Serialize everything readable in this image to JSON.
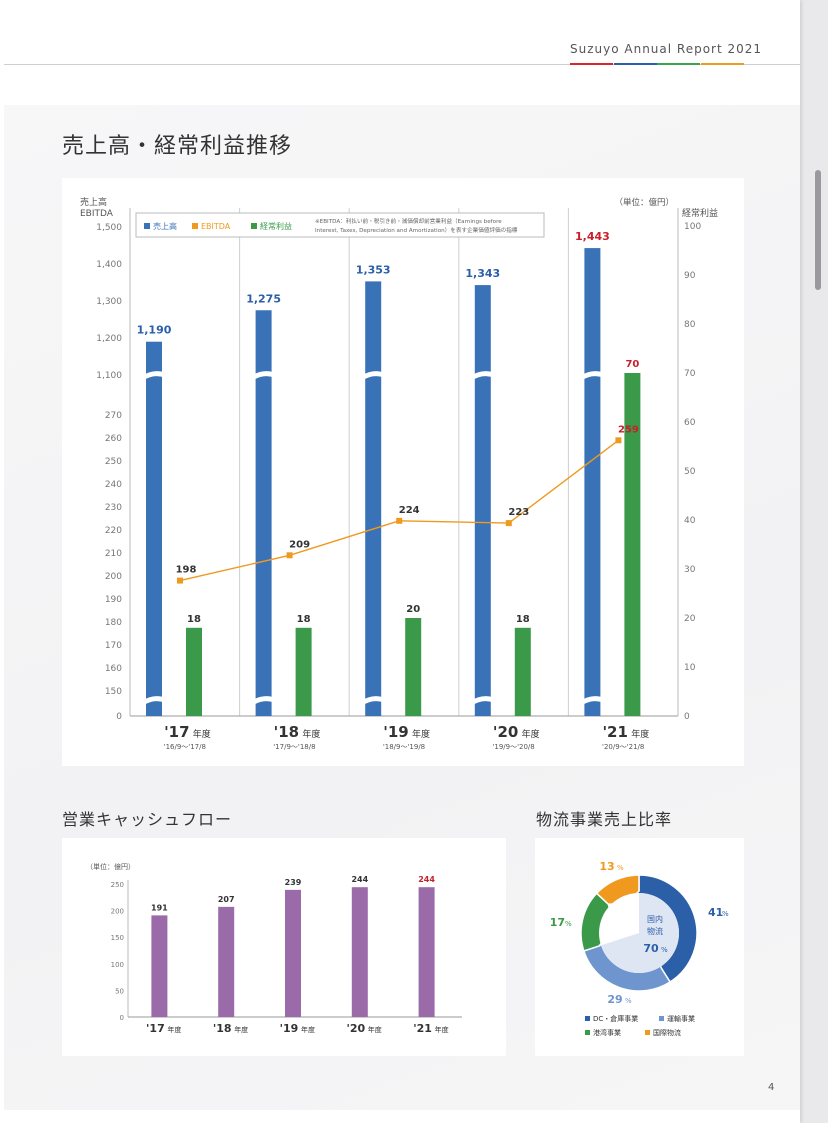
{
  "header": {
    "report_title": "Suzuyo Annual Report  2021",
    "colors": [
      "#d9252b",
      "#2b5fa8",
      "#3aa54b",
      "#ef9a1e"
    ]
  },
  "page_number": "4",
  "sections": {
    "main_title": "売上高・経常利益推移",
    "cashflow_title": "営業キャッシュフロー",
    "ratio_title": "物流事業売上比率"
  },
  "chart_data": [
    {
      "type": "bar",
      "title": "売上高・経常利益推移",
      "unit": "（単位：億円）",
      "left_axis_label": [
        "売上高",
        "EBITDA"
      ],
      "right_axis_label": "経常利益",
      "left_ticks_upper": [
        1100,
        1200,
        1300,
        1400,
        1500
      ],
      "left_ticks_lower": [
        0,
        150,
        160,
        170,
        180,
        190,
        200,
        210,
        220,
        230,
        240,
        250,
        260,
        270
      ],
      "right_ticks": [
        0,
        10,
        20,
        30,
        40,
        50,
        60,
        70,
        80,
        90,
        100
      ],
      "legend": {
        "items": [
          {
            "name": "売上高",
            "color": "#3a72b8"
          },
          {
            "name": "EBITDA",
            "color": "#ef9a1e"
          },
          {
            "name": "経常利益",
            "color": "#3a9a4a"
          }
        ],
        "note_line1": "※EBITDA：利払い前・税引き前・減価償却前営業利益（Earnings before",
        "note_line2": "Interest, Taxes, Depreciation and Amortization）を表す企業価値評価の指標"
      },
      "categories": [
        {
          "year": "'17",
          "suffix": "年度",
          "period": "'16/9～'17/8"
        },
        {
          "year": "'18",
          "suffix": "年度",
          "period": "'17/9～'18/8"
        },
        {
          "year": "'19",
          "suffix": "年度",
          "period": "'18/9～'19/8"
        },
        {
          "year": "'20",
          "suffix": "年度",
          "period": "'19/9～'20/8"
        },
        {
          "year": "'21",
          "suffix": "年度",
          "period": "'20/9～'21/8"
        }
      ],
      "series": [
        {
          "name": "売上高",
          "type": "bar",
          "axis": "left",
          "values": [
            1190,
            1275,
            1353,
            1343,
            1443
          ],
          "labels": [
            "1,190",
            "1,275",
            "1,353",
            "1,343",
            "1,443"
          ]
        },
        {
          "name": "EBITDA",
          "type": "line",
          "axis": "left",
          "values": [
            198,
            209,
            224,
            223,
            259
          ],
          "labels": [
            "198",
            "209",
            "224",
            "223",
            "259"
          ]
        },
        {
          "name": "経常利益",
          "type": "bar",
          "axis": "right",
          "values": [
            18,
            18,
            20,
            18,
            70
          ],
          "labels": [
            "18",
            "18",
            "20",
            "18",
            "70"
          ]
        }
      ],
      "highlight_color": "#c8202a",
      "axis_breaks": true
    },
    {
      "type": "bar",
      "title": "営業キャッシュフロー",
      "unit": "（単位：億円）",
      "ylim": [
        0,
        250
      ],
      "y_ticks": [
        0,
        50,
        100,
        150,
        200,
        250
      ],
      "categories": [
        {
          "year": "'17",
          "suffix": "年度"
        },
        {
          "year": "'18",
          "suffix": "年度"
        },
        {
          "year": "'19",
          "suffix": "年度"
        },
        {
          "year": "'20",
          "suffix": "年度"
        },
        {
          "year": "'21",
          "suffix": "年度"
        }
      ],
      "values": [
        191,
        207,
        239,
        244,
        244
      ],
      "bar_color": "#9b6aa8",
      "highlight_color": "#c8202a"
    },
    {
      "type": "pie",
      "title": "物流事業売上比率",
      "center_label": [
        "国内",
        "物流"
      ],
      "center_value": "70",
      "center_unit": "%",
      "slices": [
        {
          "name": "DC・倉庫事業",
          "value": 41,
          "color": "#2b5fa8"
        },
        {
          "name": "運輸事業",
          "value": 29,
          "color": "#6f95cf"
        },
        {
          "name": "港湾事業",
          "value": 17,
          "color": "#3a9a4a"
        },
        {
          "name": "国際物流",
          "value": 13,
          "color": "#ef9a1e"
        }
      ],
      "inner": {
        "value": 70,
        "color": "#dfe6f3"
      }
    }
  ]
}
